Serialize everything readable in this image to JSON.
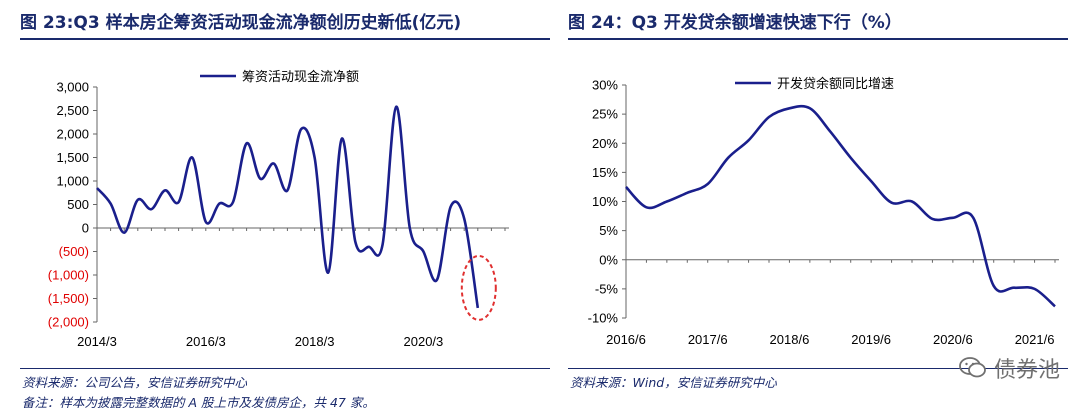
{
  "left": {
    "title": "图 23:Q3 样本房企筹资活动现金流净额创历史新低(亿元)",
    "footnote_source": "资料来源：公司公告，安信证券研究中心",
    "footnote_note": "备注：样本为披露完整数据的 A 股上市及发债房企，共 47 家。"
  },
  "right": {
    "title": "图 24：Q3 开发贷余额增速快速下行（%）",
    "footnote_source": "资料来源：Wind，安信证券研究中心"
  },
  "watermark": {
    "text": "债券池",
    "icon": "wechat-icon"
  },
  "colors": {
    "line": "#1a1f8c",
    "title": "#1a2a6c",
    "negative_label": "#e00000",
    "highlight_circle": "#e03030"
  },
  "chart_data": [
    {
      "type": "line",
      "title": "",
      "legend": "top-center",
      "series": [
        {
          "name": "筹资活动现金流净额",
          "x": [
            "2014/3",
            "2014/6",
            "2014/9",
            "2014/12",
            "2015/3",
            "2015/6",
            "2015/9",
            "2015/12",
            "2016/3",
            "2016/6",
            "2016/9",
            "2016/12",
            "2017/3",
            "2017/6",
            "2017/9",
            "2017/12",
            "2018/3",
            "2018/6",
            "2018/9",
            "2018/12",
            "2019/3",
            "2019/6",
            "2019/9",
            "2019/12",
            "2020/3",
            "2020/6",
            "2020/9",
            "2020/12",
            "2021/3",
            "2021/6",
            "2021/9"
          ],
          "values": [
            850,
            520,
            -100,
            600,
            400,
            800,
            550,
            1500,
            130,
            520,
            550,
            1800,
            1050,
            1370,
            800,
            2100,
            1500,
            -950,
            1900,
            -300,
            -400,
            -350,
            2580,
            0,
            -500,
            -1100,
            450,
            200,
            -1700,
            null,
            null
          ]
        }
      ],
      "yticks": [
        "3,000",
        "2,500",
        "2,000",
        "1,500",
        "1,000",
        "500",
        "0",
        "(500)",
        "(1,000)",
        "(1,500)",
        "(2,000)"
      ],
      "ylim": [
        -2000,
        3000
      ],
      "xticks": [
        "2014/3",
        "2016/3",
        "2018/3",
        "2020/3"
      ],
      "annotation": "dashed circle around last point"
    },
    {
      "type": "line",
      "title": "",
      "legend": "top-center",
      "series": [
        {
          "name": "开发贷余额同比增速",
          "x": [
            "2016/6",
            "2016/9",
            "2016/12",
            "2017/3",
            "2017/6",
            "2017/9",
            "2017/12",
            "2018/3",
            "2018/6",
            "2018/9",
            "2018/12",
            "2019/3",
            "2019/6",
            "2019/9",
            "2019/12",
            "2020/3",
            "2020/6",
            "2020/9",
            "2020/12",
            "2021/3",
            "2021/6",
            "2021/9"
          ],
          "values": [
            12.5,
            9,
            10,
            11.5,
            13,
            17.5,
            20.5,
            24.5,
            26,
            26,
            22,
            17.5,
            13.5,
            9.8,
            10,
            7,
            7.2,
            7.2,
            -4.5,
            -4.8,
            -5,
            -8
          ]
        }
      ],
      "yticks": [
        "30%",
        "25%",
        "20%",
        "15%",
        "10%",
        "5%",
        "0%",
        "-5%",
        "-10%"
      ],
      "ylim": [
        -10,
        30
      ],
      "xticks": [
        "2016/6",
        "2017/6",
        "2018/6",
        "2019/6",
        "2020/6",
        "2021/6"
      ]
    }
  ]
}
